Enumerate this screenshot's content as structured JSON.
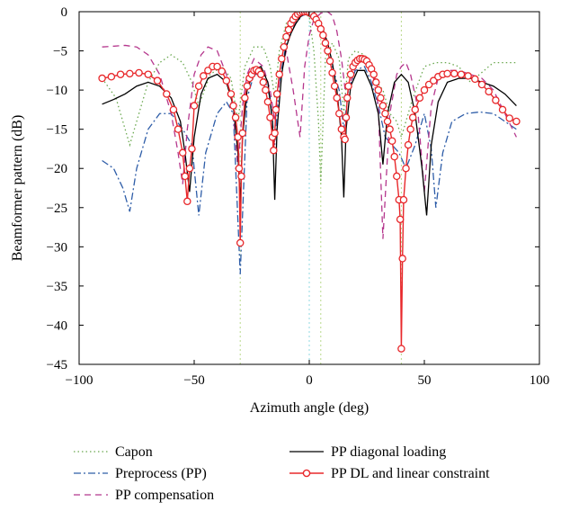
{
  "chart_data": {
    "type": "line",
    "xlabel": "Azimuth angle (deg)",
    "ylabel": "Beamformer pattern (dB)",
    "xlim": [
      -100,
      100
    ],
    "ylim": [
      -45,
      0
    ],
    "xticks": [
      -100,
      -50,
      0,
      50,
      100
    ],
    "yticks": [
      0,
      -5,
      -10,
      -15,
      -20,
      -25,
      -30,
      -35,
      -40,
      -45
    ],
    "xtick_labels": [
      "−100",
      "−50",
      "0",
      "50",
      "100"
    ],
    "ytick_labels": [
      "0",
      "−5",
      "−10",
      "−15",
      "−20",
      "−25",
      "−30",
      "−35",
      "−40",
      "−45"
    ],
    "grid": false,
    "legend_position": "bottom",
    "reference_lines_x": [
      -30,
      0,
      5,
      40
    ],
    "series": [
      {
        "name": "Capon",
        "color": "#6aa84f",
        "style": "dotted",
        "x": [
          -90,
          -84,
          -80,
          -78,
          -75,
          -70,
          -65,
          -60,
          -55,
          -51,
          -48,
          -43,
          -38,
          -34,
          -31,
          -28,
          -24,
          -20,
          -17,
          -15,
          -13,
          -10,
          -6,
          -3,
          0,
          2,
          4,
          5,
          7,
          10,
          13,
          15,
          17,
          20,
          24,
          28,
          32,
          35,
          38,
          40,
          42,
          45,
          50,
          55,
          60,
          65,
          70,
          80,
          90
        ],
        "y": [
          -8.5,
          -11,
          -15,
          -17,
          -14,
          -9,
          -6.5,
          -5.5,
          -6.5,
          -9,
          -12,
          -8,
          -7,
          -8.5,
          -14,
          -7,
          -4.5,
          -4.5,
          -7,
          -11,
          -5,
          -1.5,
          -0.6,
          -0.3,
          -0.6,
          -5,
          -14,
          -22,
          -6,
          -4,
          -6,
          -13,
          -6,
          -5,
          -5.5,
          -8.5,
          -10,
          -13,
          -14,
          -16,
          -14,
          -11,
          -7,
          -6.5,
          -6.5,
          -7,
          -9,
          -6.5,
          -6.5
        ]
      },
      {
        "name": "Preprocess (PP)",
        "color": "#2e5da8",
        "style": "dashdot",
        "x": [
          -90,
          -85,
          -81,
          -78,
          -75,
          -70,
          -65,
          -60,
          -55,
          -51,
          -48,
          -45,
          -40,
          -36,
          -33,
          -30,
          -27,
          -24,
          -20,
          -17,
          -15,
          -13,
          -10,
          -6,
          -3,
          0,
          3,
          6,
          8,
          10,
          13,
          15,
          17,
          20,
          24,
          27,
          30,
          33,
          36,
          39,
          42,
          46,
          50,
          53,
          55,
          58,
          62,
          68,
          74,
          80,
          85,
          90
        ],
        "y": [
          -19,
          -20,
          -22.5,
          -25.5,
          -20,
          -15,
          -13,
          -13,
          -15,
          -17,
          -26,
          -18,
          -13,
          -11.5,
          -13,
          -33.5,
          -11,
          -8,
          -8,
          -11,
          -17,
          -9,
          -4,
          -1.5,
          -0.5,
          -0.2,
          -0.8,
          -2.5,
          -5,
          -7,
          -10,
          -15,
          -10,
          -7.5,
          -7,
          -9,
          -12,
          -16,
          -17,
          -18,
          -20,
          -17,
          -13,
          -17.5,
          -25,
          -18,
          -14,
          -13,
          -12.8,
          -13,
          -14,
          -15
        ]
      },
      {
        "name": "PP compensation",
        "color": "#b5378d",
        "style": "dashed",
        "x": [
          -90,
          -85,
          -80,
          -75,
          -70,
          -65,
          -60,
          -57,
          -55,
          -53,
          -50,
          -47,
          -44,
          -40,
          -36,
          -33,
          -31,
          -29,
          -27,
          -24,
          -20,
          -17,
          -15,
          -13,
          -10,
          -7,
          -4,
          -2,
          0,
          2,
          5,
          8,
          10,
          12,
          14,
          16,
          18,
          20,
          22,
          24,
          27,
          30,
          32,
          35,
          38,
          40,
          42,
          44,
          47,
          50,
          53,
          56,
          60,
          65,
          70,
          75,
          80,
          85,
          90
        ],
        "y": [
          -4.5,
          -4.4,
          -4.3,
          -4.5,
          -5.5,
          -8,
          -13,
          -18,
          -22,
          -15,
          -8,
          -5.5,
          -4.5,
          -5,
          -8,
          -13,
          -20,
          -12,
          -8,
          -6,
          -7,
          -10,
          -14,
          -9,
          -5,
          -10,
          -16,
          -7,
          -3,
          -1,
          -0.2,
          0,
          -0.5,
          -2.5,
          -6,
          -11,
          -9,
          -7,
          -6,
          -5.5,
          -7,
          -12,
          -29,
          -13,
          -8,
          -7,
          -6.5,
          -8,
          -12,
          -23,
          -12,
          -8.5,
          -7.5,
          -7.5,
          -8,
          -8.5,
          -10,
          -13,
          -16
        ]
      },
      {
        "name": "PP diagonal loading",
        "color": "#000000",
        "style": "solid",
        "x": [
          -90,
          -85,
          -80,
          -75,
          -70,
          -65,
          -60,
          -56,
          -54,
          -52,
          -50,
          -47,
          -44,
          -40,
          -36,
          -33,
          -31,
          -30,
          -29,
          -27,
          -24,
          -21,
          -18,
          -16,
          -15,
          -14,
          -12,
          -10,
          -8,
          -6,
          -4,
          -2,
          0,
          2,
          4,
          6,
          8,
          10,
          12,
          14,
          15,
          16,
          18,
          21,
          24,
          27,
          30,
          32,
          34,
          37,
          40,
          43,
          46,
          49,
          51,
          53,
          56,
          60,
          65,
          70,
          75,
          80,
          85,
          90
        ],
        "y": [
          -11.8,
          -11.2,
          -10.5,
          -9.5,
          -9,
          -9.5,
          -11,
          -14,
          -18,
          -23,
          -16,
          -10.5,
          -8.5,
          -8,
          -9,
          -12,
          -18,
          -24.5,
          -16,
          -10,
          -7.5,
          -7,
          -9,
          -14,
          -24,
          -15,
          -8,
          -4.5,
          -2.8,
          -1.6,
          -0.7,
          -0.2,
          0,
          -0.3,
          -1,
          -2.3,
          -4,
          -6.5,
          -10,
          -16,
          -23.7,
          -15,
          -9.5,
          -7.5,
          -7.5,
          -9.5,
          -13,
          -19.5,
          -13,
          -9,
          -8,
          -9,
          -13,
          -20,
          -26,
          -17,
          -11.5,
          -9,
          -8.5,
          -8.5,
          -9,
          -9.5,
          -10.5,
          -12
        ]
      },
      {
        "name": "PP DL and linear constraint",
        "color": "#e8282b",
        "style": "solid-markers",
        "x": [
          -90,
          -86,
          -82,
          -78,
          -74,
          -70,
          -66,
          -62,
          -59,
          -57,
          -55,
          -54,
          -53,
          -52,
          -51,
          -50,
          -48,
          -46,
          -44,
          -42,
          -40,
          -38,
          -36,
          -34,
          -33,
          -32,
          -31,
          -30.5,
          -30,
          -29.5,
          -29,
          -28,
          -27,
          -26,
          -25,
          -24,
          -23,
          -22,
          -21,
          -20,
          -19,
          -18,
          -17,
          -16,
          -15.5,
          -15,
          -14.5,
          -14,
          -13,
          -12,
          -11,
          -10,
          -9,
          -8,
          -7,
          -6,
          -5,
          -4,
          -3,
          -2,
          -1,
          0,
          1,
          2,
          3,
          4,
          5,
          6,
          7,
          8,
          9,
          10,
          11,
          12,
          13,
          14,
          15,
          15.5,
          16,
          16.5,
          17,
          18,
          19,
          20,
          21,
          22,
          23,
          24,
          25,
          26,
          27,
          28,
          29,
          30,
          31,
          32,
          33,
          34,
          35,
          36,
          37,
          38,
          39,
          39.5,
          40,
          40.5,
          41,
          42,
          43,
          44,
          45,
          46,
          48,
          50,
          52,
          54,
          56,
          58,
          60,
          63,
          66,
          69,
          72,
          75,
          78,
          81,
          84,
          87,
          90
        ],
        "y": [
          -8.5,
          -8.3,
          -8,
          -7.9,
          -7.8,
          -8,
          -8.8,
          -10.5,
          -12.5,
          -15,
          -18,
          -21,
          -24.2,
          -20,
          -17.5,
          -12,
          -9.5,
          -8.2,
          -7.5,
          -7,
          -7,
          -7.6,
          -8.8,
          -10.5,
          -12,
          -13.5,
          -16,
          -20,
          -29.5,
          -21,
          -15.5,
          -11,
          -9.5,
          -8.5,
          -8,
          -7.5,
          -7.4,
          -7.6,
          -8,
          -9,
          -10,
          -11.5,
          -13.5,
          -16,
          -17.7,
          -15.5,
          -12.5,
          -10.5,
          -8,
          -6,
          -4.5,
          -3.2,
          -2.3,
          -1.5,
          -1,
          -0.6,
          -0.3,
          -0.1,
          0,
          0,
          0,
          -0.1,
          -0.3,
          -0.6,
          -1,
          -1.5,
          -2.2,
          -3,
          -4,
          -5,
          -6.3,
          -7.8,
          -9.5,
          -11,
          -13,
          -15,
          -16,
          -16.3,
          -13.5,
          -11,
          -9.5,
          -8,
          -7,
          -6.5,
          -6.2,
          -6,
          -6,
          -6.1,
          -6.3,
          -6.8,
          -7.3,
          -8,
          -9,
          -10,
          -11,
          -12,
          -13,
          -14,
          -15,
          -16.5,
          -18.5,
          -21,
          -24,
          -26.5,
          -43,
          -31.5,
          -24,
          -20,
          -17,
          -15,
          -13.5,
          -12.5,
          -11,
          -10,
          -9.3,
          -8.8,
          -8.3,
          -8,
          -7.9,
          -7.9,
          -8,
          -8.2,
          -8.6,
          -9.3,
          -10.2,
          -11.3,
          -12.5,
          -13.6,
          -14
        ]
      }
    ]
  }
}
